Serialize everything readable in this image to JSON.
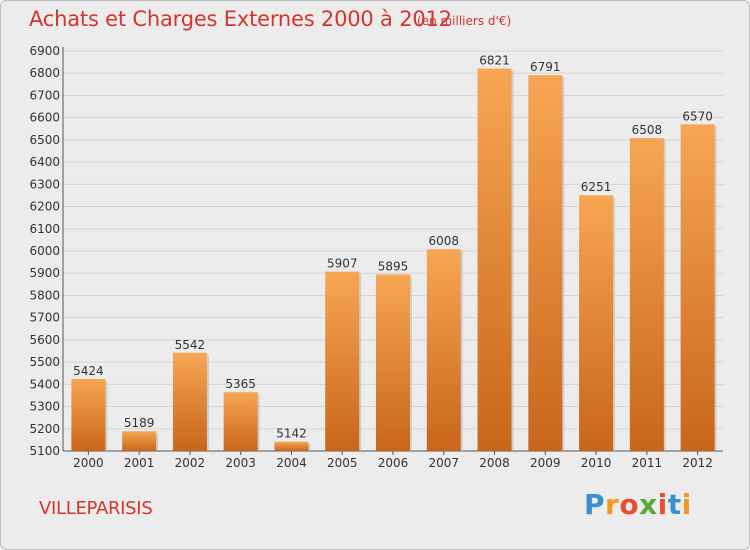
{
  "title": "Achats et Charges Externes 2000 à 2012",
  "subtitle": "(en milliers d'€)",
  "commune": "VILLEPARISIS",
  "logo": {
    "letters": [
      "P",
      "r",
      "o",
      "x",
      "i",
      "t",
      "i"
    ],
    "colors": [
      "#3a8fd0",
      "#f29a1f",
      "#e84d2e",
      "#5aa83a",
      "#e84d2e",
      "#3a8fd0",
      "#f29a1f"
    ]
  },
  "colors": {
    "bar_top": "#f7a654",
    "bar_bottom": "#c8661a",
    "title": "#d2362e",
    "plot_background": "#ececec"
  },
  "chart_data": {
    "type": "bar",
    "title": "Achats et Charges Externes 2000 à 2012",
    "subtitle": "(en milliers d'€)",
    "xlabel": "",
    "ylabel": "",
    "categories": [
      "2000",
      "2001",
      "2002",
      "2003",
      "2004",
      "2005",
      "2006",
      "2007",
      "2008",
      "2009",
      "2010",
      "2011",
      "2012"
    ],
    "values": [
      5424,
      5189,
      5542,
      5365,
      5142,
      5907,
      5895,
      6008,
      6821,
      6791,
      6251,
      6508,
      6570
    ],
    "ylim": [
      5100,
      6900
    ],
    "yticks": [
      5100,
      5200,
      5300,
      5400,
      5500,
      5600,
      5700,
      5800,
      5900,
      6000,
      6100,
      6200,
      6300,
      6400,
      6500,
      6600,
      6700,
      6800,
      6900
    ],
    "grid": true,
    "data_labels": true
  }
}
